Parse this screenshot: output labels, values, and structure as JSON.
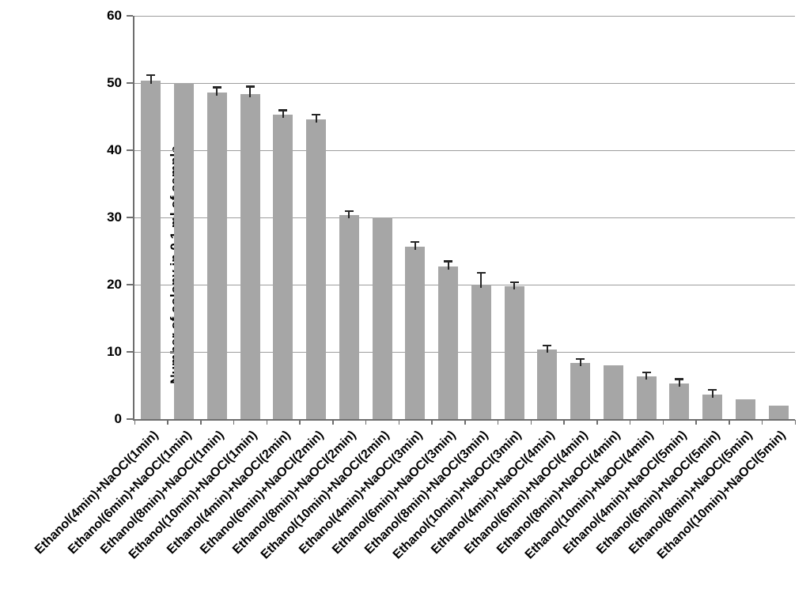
{
  "chart_data": {
    "type": "bar",
    "title": "",
    "xlabel": "",
    "ylabel": "Number of colony in 0.1 ml of sample",
    "ylim": [
      0,
      60
    ],
    "yticks": [
      0,
      10,
      20,
      30,
      40,
      50,
      60
    ],
    "grid": true,
    "legend": "none",
    "bar_color": "#a6a6a6",
    "gridline_color": "#9d9d9d",
    "axis_color": "#6e6e6e",
    "error_bar_color": "#262626",
    "categories": [
      "Ethanol(4min)+NaOCl(1min)",
      "Ethanol(6min)+NaOCl(1min)",
      "Ethanol(8min)+NaOCl(1min)",
      "Ethanol(10min)+NaOCl(1min)",
      "Ethanol(4min)+NaOCl(2min)",
      "Ethanol(6min)+NaOCl(2min)",
      "Ethanol(8min)+NaOCl(2min)",
      "Ethanol(10min)+NaOCl(2min)",
      "Ethanol(4min)+NaOCl(3min)",
      "Ethanol(6min)+NaOCl(3min)",
      "Ethanol(8min)+NaOCl(3min)",
      "Ethanol(10min)+NaOCl(3min)",
      "Ethanol(4min)+NaOCl(4min)",
      "Ethanol(6min)+NaOCl(4min)",
      "Ethanol(8min)+NaOCl(4min)",
      "Ethanol(10min)+NaOCl(4min)",
      "Ethanol(4min)+NaOCl(5min)",
      "Ethanol(6min)+NaOCl(5min)",
      "Ethanol(8min)+NaOCl(5min)",
      "Ethanol(10min)+NaOCl(5min)"
    ],
    "values": [
      50.4,
      50.0,
      48.6,
      48.3,
      45.3,
      44.6,
      30.3,
      30.0,
      25.7,
      22.7,
      20.0,
      19.8,
      10.3,
      8.3,
      8.0,
      6.3,
      5.3,
      3.7,
      3.0,
      2.0
    ],
    "errors": [
      0.8,
      0,
      0.8,
      1.2,
      0.7,
      0.7,
      0.7,
      0,
      0.7,
      0.8,
      1.8,
      0.6,
      0.7,
      0.7,
      0,
      0.7,
      0.7,
      0.7,
      0,
      0
    ]
  }
}
